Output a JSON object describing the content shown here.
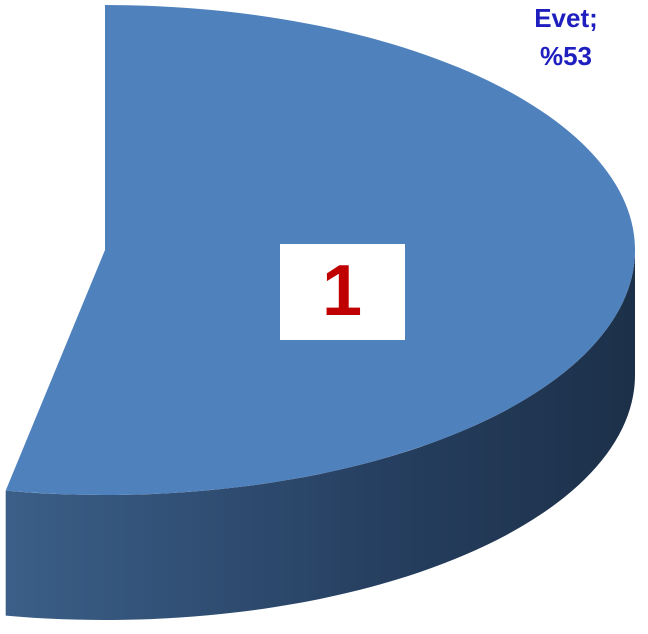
{
  "chart_data": {
    "type": "pie",
    "categories": [
      "Evet;"
    ],
    "values": [
      53
    ],
    "value_labels": [
      "%53"
    ],
    "colors": [
      "#4f81bd"
    ],
    "annotation": "1"
  }
}
